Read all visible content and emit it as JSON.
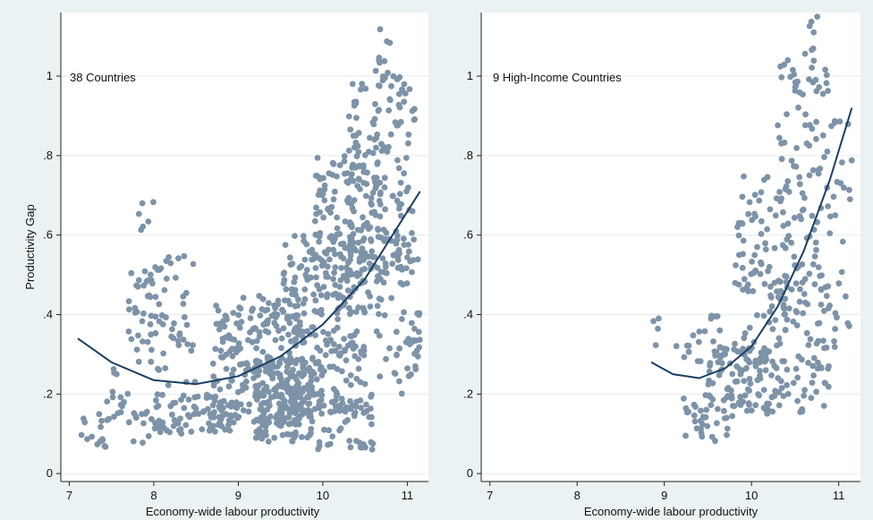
{
  "colors": {
    "background": "#eaf2f3",
    "plot_region": "#ffffff",
    "points": "#7d93a8",
    "fit_line": "#1a3e63",
    "grid": "#e4ebee",
    "axis": "#222222"
  },
  "chart_data": [
    {
      "type": "scatter",
      "panel_label": "38 Countries",
      "xlabel": "Economy-wide labour productivity",
      "ylabel": "Productivity Gap",
      "xlim": [
        6.9,
        11.25
      ],
      "ylim": [
        -0.02,
        1.16
      ],
      "x_ticks": [
        7,
        8,
        9,
        10,
        11
      ],
      "x_tick_labels": [
        "7",
        "8",
        "9",
        "10",
        "11"
      ],
      "y_ticks": [
        0,
        0.2,
        0.4,
        0.6,
        0.8,
        1
      ],
      "y_tick_labels": [
        "0",
        ".2",
        ".4",
        ".6",
        ".8",
        "1"
      ],
      "grid": "horizontal",
      "fit": {
        "type": "quadratic",
        "x": [
          7.1,
          7.5,
          8.0,
          8.5,
          9.0,
          9.5,
          10.0,
          10.5,
          11.15
        ],
        "y": [
          0.34,
          0.28,
          0.235,
          0.225,
          0.245,
          0.295,
          0.375,
          0.49,
          0.71
        ]
      },
      "clusters": [
        {
          "x": [
            7.1,
            7.5
          ],
          "y": [
            0.05,
            0.15
          ],
          "n": 16
        },
        {
          "x": [
            7.4,
            7.7
          ],
          "y": [
            0.14,
            0.27
          ],
          "n": 14
        },
        {
          "x": [
            7.7,
            8.1
          ],
          "y": [
            0.28,
            0.52
          ],
          "n": 38
        },
        {
          "x": [
            7.8,
            8.0
          ],
          "y": [
            0.55,
            0.74
          ],
          "n": 6
        },
        {
          "x": [
            8.0,
            8.5
          ],
          "y": [
            0.22,
            0.55
          ],
          "n": 40
        },
        {
          "x": [
            7.7,
            8.0
          ],
          "y": [
            0.07,
            0.16
          ],
          "n": 12
        },
        {
          "x": [
            8.0,
            9.0
          ],
          "y": [
            0.1,
            0.2
          ],
          "n": 80
        },
        {
          "x": [
            8.7,
            9.8
          ],
          "y": [
            0.12,
            0.45
          ],
          "n": 230
        },
        {
          "x": [
            9.2,
            9.9
          ],
          "y": [
            0.08,
            0.3
          ],
          "n": 160
        },
        {
          "x": [
            9.5,
            10.5
          ],
          "y": [
            0.15,
            0.6
          ],
          "n": 220
        },
        {
          "x": [
            9.9,
            10.7
          ],
          "y": [
            0.4,
            0.8
          ],
          "n": 160
        },
        {
          "x": [
            10.3,
            11.1
          ],
          "y": [
            0.5,
            1.0
          ],
          "n": 150
        },
        {
          "x": [
            9.9,
            10.6
          ],
          "y": [
            0.06,
            0.2
          ],
          "n": 45
        },
        {
          "x": [
            10.6,
            11.15
          ],
          "y": [
            0.2,
            0.6
          ],
          "n": 70
        },
        {
          "x": [
            10.6,
            10.8
          ],
          "y": [
            1.0,
            1.15
          ],
          "n": 9
        }
      ]
    },
    {
      "type": "scatter",
      "panel_label": "9 High-Income Countries",
      "xlabel": "Economy-wide labour productivity",
      "ylabel": "",
      "xlim": [
        6.9,
        11.25
      ],
      "ylim": [
        -0.02,
        1.16
      ],
      "x_ticks": [
        7,
        8,
        9,
        10,
        11
      ],
      "x_tick_labels": [
        "7",
        "8",
        "9",
        "10",
        "11"
      ],
      "y_ticks": [
        0,
        0.2,
        0.4,
        0.6,
        0.8,
        1
      ],
      "y_tick_labels": [
        "0",
        ".2",
        ".4",
        ".6",
        ".8",
        "1"
      ],
      "grid": "horizontal",
      "fit": {
        "type": "quadratic",
        "x": [
          8.85,
          9.1,
          9.4,
          9.7,
          10.0,
          10.3,
          10.6,
          10.9,
          11.15
        ],
        "y": [
          0.28,
          0.25,
          0.24,
          0.265,
          0.32,
          0.42,
          0.56,
          0.74,
          0.92
        ]
      },
      "clusters": [
        {
          "x": [
            8.85,
            9.7
          ],
          "y": [
            0.27,
            0.41
          ],
          "n": 22
        },
        {
          "x": [
            9.2,
            9.8
          ],
          "y": [
            0.08,
            0.2
          ],
          "n": 40
        },
        {
          "x": [
            9.5,
            10.2
          ],
          "y": [
            0.15,
            0.32
          ],
          "n": 90
        },
        {
          "x": [
            9.8,
            10.4
          ],
          "y": [
            0.28,
            0.75
          ],
          "n": 80
        },
        {
          "x": [
            10.2,
            10.9
          ],
          "y": [
            0.15,
            0.5
          ],
          "n": 100
        },
        {
          "x": [
            10.3,
            10.9
          ],
          "y": [
            0.5,
            1.06
          ],
          "n": 90
        },
        {
          "x": [
            10.7,
            11.15
          ],
          "y": [
            0.3,
            0.9
          ],
          "n": 40
        },
        {
          "x": [
            10.65,
            10.78
          ],
          "y": [
            1.06,
            1.15
          ],
          "n": 6
        }
      ]
    }
  ]
}
